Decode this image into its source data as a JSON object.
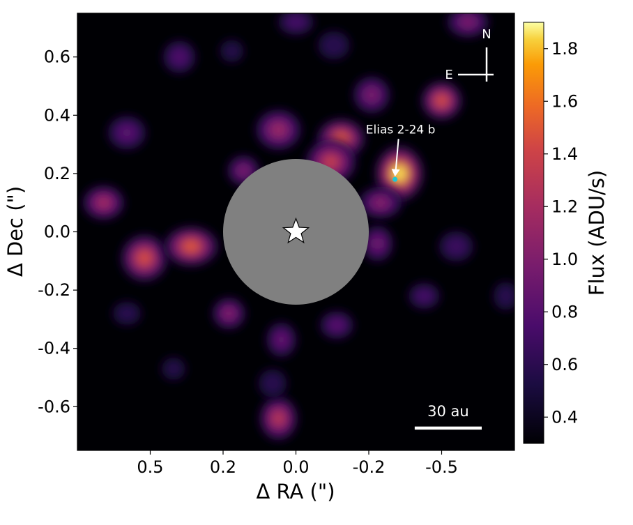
{
  "chart_data": {
    "type": "heatmap",
    "title": "",
    "xlabel": "Δ RA (\")",
    "ylabel": "Δ Dec (\")",
    "xlim": [
      0.75,
      -0.75
    ],
    "ylim": [
      -0.75,
      0.75
    ],
    "x_ticks": [
      0.5,
      0.25,
      0.0,
      -0.25,
      -0.5
    ],
    "x_tick_labels": [
      "0.5",
      "0.2",
      "0.0",
      "-0.2",
      "-0.5"
    ],
    "y_ticks": [
      -0.6,
      -0.4,
      -0.2,
      0.0,
      0.2,
      0.4,
      0.6
    ],
    "y_tick_labels": [
      "-0.6",
      "-0.4",
      "-0.2",
      "0.0",
      "0.2",
      "0.4",
      "0.6"
    ],
    "colorbar": {
      "label": "Flux (ADU/s)",
      "range": [
        0.3,
        1.9
      ],
      "ticks": [
        0.4,
        0.6,
        0.8,
        1.0,
        1.2,
        1.4,
        1.6,
        1.8
      ],
      "tick_labels": [
        "0.4",
        "0.6",
        "0.8",
        "1.0",
        "1.2",
        "1.4",
        "1.6",
        "1.8"
      ],
      "colormap": "inferno"
    },
    "mask": {
      "center": [
        0.0,
        0.0
      ],
      "radius_arcsec": 0.25,
      "color": "#808080"
    },
    "star": {
      "x": 0.0,
      "y": 0.0
    },
    "companion": {
      "label": "Elias 2-24 b",
      "x": -0.34,
      "y": 0.18,
      "marker_color": "#1ec8d4"
    },
    "compass": {
      "north": "N",
      "east": "E"
    },
    "scalebar": {
      "label": "30 au",
      "length_arcsec": 0.23
    },
    "blobs": [
      {
        "x": -0.355,
        "y": 0.2,
        "peak": 1.85
      },
      {
        "x": -0.155,
        "y": 0.32,
        "peak": 1.5
      },
      {
        "x": -0.12,
        "y": 0.24,
        "peak": 1.35
      },
      {
        "x": -0.5,
        "y": 0.45,
        "peak": 1.45
      },
      {
        "x": 0.52,
        "y": -0.09,
        "peak": 1.45
      },
      {
        "x": 0.36,
        "y": -0.05,
        "peak": 1.5
      },
      {
        "x": 0.06,
        "y": -0.64,
        "peak": 1.3
      },
      {
        "x": 0.66,
        "y": 0.1,
        "peak": 1.2
      },
      {
        "x": 0.06,
        "y": 0.35,
        "peak": 1.15
      },
      {
        "x": 0.23,
        "y": -0.28,
        "peak": 1.05
      },
      {
        "x": -0.26,
        "y": 0.47,
        "peak": 1.0
      },
      {
        "x": -0.29,
        "y": 0.1,
        "peak": 1.05
      },
      {
        "x": -0.28,
        "y": -0.04,
        "peak": 0.95
      },
      {
        "x": -0.14,
        "y": -0.32,
        "peak": 0.85
      },
      {
        "x": 0.58,
        "y": 0.34,
        "peak": 0.85
      },
      {
        "x": 0.18,
        "y": 0.21,
        "peak": 1.0
      },
      {
        "x": 0.4,
        "y": 0.6,
        "peak": 0.8
      },
      {
        "x": -0.59,
        "y": 0.72,
        "peak": 1.0
      },
      {
        "x": 0.05,
        "y": -0.37,
        "peak": 0.9
      },
      {
        "x": -0.44,
        "y": -0.22,
        "peak": 0.75
      },
      {
        "x": -0.55,
        "y": -0.05,
        "peak": 0.7
      },
      {
        "x": 0.42,
        "y": -0.47,
        "peak": 0.55
      },
      {
        "x": 0.08,
        "y": -0.52,
        "peak": 0.6
      },
      {
        "x": 0.0,
        "y": 0.72,
        "peak": 0.75
      },
      {
        "x": -0.72,
        "y": -0.22,
        "peak": 0.6
      },
      {
        "x": 0.58,
        "y": -0.28,
        "peak": 0.6
      },
      {
        "x": -0.13,
        "y": 0.64,
        "peak": 0.6
      },
      {
        "x": 0.22,
        "y": 0.62,
        "peak": 0.55
      }
    ]
  }
}
